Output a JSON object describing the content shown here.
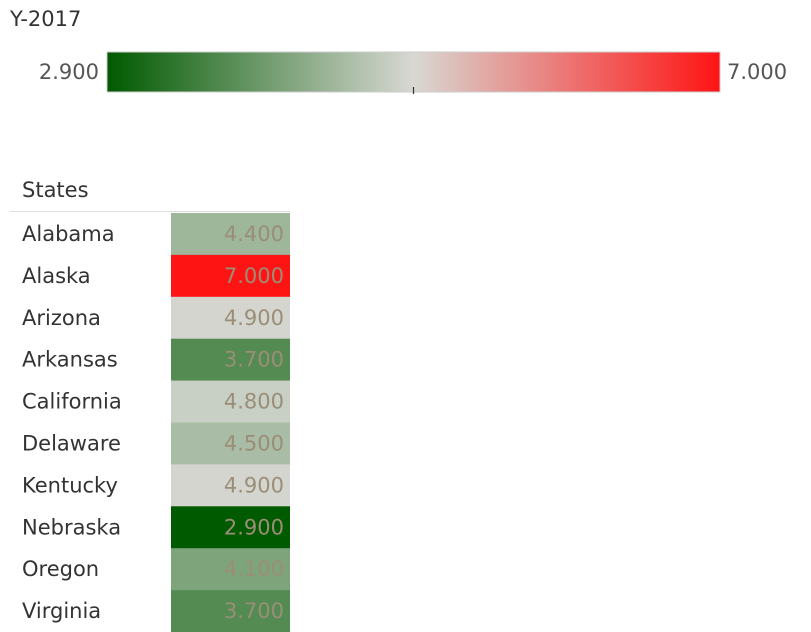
{
  "chart_data": {
    "type": "heatmap",
    "legend": {
      "title": "Y-2017",
      "min": {
        "value": 2.9,
        "label": "2.900"
      },
      "max": {
        "value": 7.0,
        "label": "7.000"
      },
      "colors": [
        "#005a00",
        "#d8d8d3",
        "#ff1414"
      ]
    },
    "row_header": "States",
    "categories": [
      "Alabama",
      "Alaska",
      "Arizona",
      "Arkansas",
      "California",
      "Delaware",
      "Kentucky",
      "Nebraska",
      "Oregon",
      "Virginia"
    ],
    "values": [
      4.4,
      7.0,
      4.9,
      3.7,
      4.8,
      4.5,
      4.9,
      2.9,
      4.1,
      3.7
    ],
    "value_labels": [
      "4.400",
      "7.000",
      "4.900",
      "3.700",
      "4.800",
      "4.500",
      "4.900",
      "2.900",
      "4.100",
      "3.700"
    ],
    "value_label_color": "#9a8e78"
  }
}
